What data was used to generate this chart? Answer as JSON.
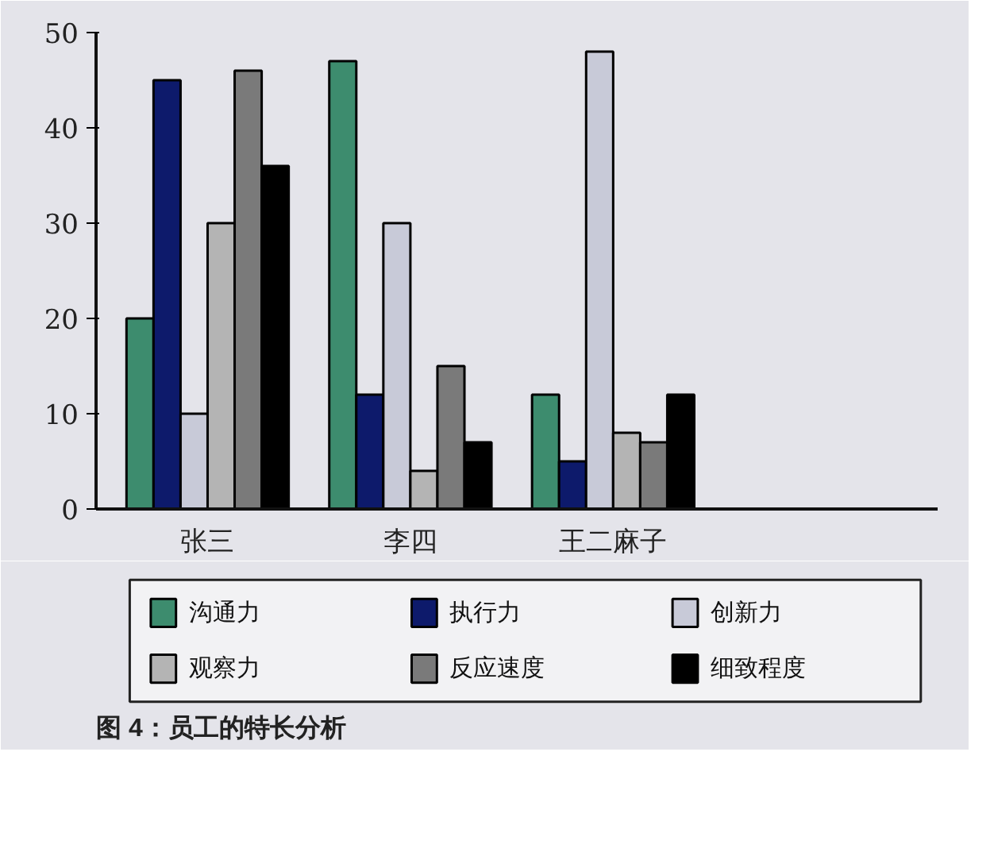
{
  "chart_data": {
    "type": "bar",
    "categories": [
      "张三",
      "李四",
      "王二麻子"
    ],
    "series": [
      {
        "name": "沟通力",
        "color": "#3d8c6e",
        "values": [
          20,
          47,
          12
        ]
      },
      {
        "name": "执行力",
        "color": "#0d1a6b",
        "values": [
          45,
          12,
          5
        ]
      },
      {
        "name": "创新力",
        "color": "#c8cad8",
        "values": [
          10,
          30,
          48
        ]
      },
      {
        "name": "观察力",
        "color": "#b4b4b4",
        "values": [
          30,
          4,
          8
        ]
      },
      {
        "name": "反应速度",
        "color": "#7a7a7a",
        "values": [
          46,
          15,
          7
        ]
      },
      {
        "name": "细致程度",
        "color": "#000000",
        "values": [
          36,
          7,
          12
        ]
      }
    ],
    "ylim": [
      0,
      50
    ],
    "yticks": [
      0,
      10,
      20,
      30,
      40,
      50
    ],
    "grid": false,
    "legend": "bottom",
    "annotations": [
      "图 4：员工的特长分析"
    ]
  }
}
